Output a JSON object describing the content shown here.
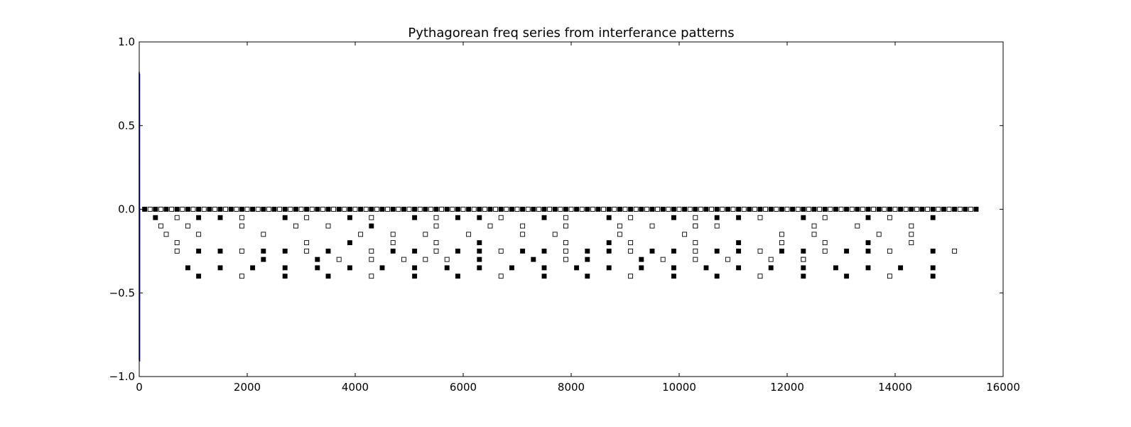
{
  "chart_data": {
    "type": "scatter",
    "title": "Pythagorean freq series from interferance patterns",
    "xlabel": "",
    "ylabel": "",
    "xlim": [
      0,
      16000
    ],
    "ylim": [
      -1.0,
      1.0
    ],
    "x_ticks": [
      0,
      2000,
      4000,
      6000,
      8000,
      10000,
      12000,
      14000,
      16000
    ],
    "x_tick_labels": [
      "0",
      "2000",
      "4000",
      "6000",
      "8000",
      "10000",
      "12000",
      "14000",
      "16000"
    ],
    "y_ticks": [
      -1.0,
      -0.5,
      0.0,
      0.5,
      1.0
    ],
    "y_tick_labels": [
      "−1.0",
      "−0.5",
      "0.0",
      "0.5",
      "1.0"
    ],
    "grid": false,
    "legend": "none",
    "colors": {
      "line": "#00008b",
      "filled_marker": "#000000",
      "open_marker_fill": "#ffffff",
      "axes": "#000000"
    },
    "line_series": {
      "x": [
        0,
        1,
        2,
        3,
        4,
        5,
        6,
        7,
        8
      ],
      "y": [
        0.82,
        -0.9,
        0.81,
        -0.91,
        0.8,
        -0.9,
        0.81,
        -0.91,
        0.0
      ]
    },
    "zero_row": {
      "x_start": 100,
      "x_end": 15500,
      "step": 100,
      "y": 0.0
    },
    "series": [
      {
        "marker": "filled-square",
        "x": [
          300,
          1100,
          1500,
          2700,
          3900,
          5100,
          5900,
          6300,
          7500,
          8700,
          9900,
          10700,
          11100,
          12300,
          13500,
          14700,
          4300,
          10300,
          3900,
          6300,
          8700,
          11100,
          13500,
          1100,
          1500,
          2300,
          2700,
          3500,
          4700,
          5100,
          5900,
          6300,
          7100,
          7500,
          8300,
          8700,
          9500,
          9900,
          10700,
          11100,
          11900,
          12300,
          13100,
          13500,
          14700,
          2300,
          3300,
          6300,
          7300,
          8300,
          9300,
          12300,
          900,
          1500,
          2100,
          2700,
          3300,
          3900,
          4500,
          5100,
          5700,
          6300,
          6900,
          7500,
          8100,
          8700,
          9300,
          9900,
          10500,
          11100,
          11700,
          12300,
          12900,
          13500,
          14100,
          14700,
          1100,
          2700,
          3500,
          5100,
          5900,
          7500,
          8300,
          9900,
          10700,
          12300,
          13100,
          14700
        ],
        "y": [
          -0.05,
          -0.05,
          -0.05,
          -0.05,
          -0.05,
          -0.05,
          -0.05,
          -0.05,
          -0.05,
          -0.05,
          -0.05,
          -0.05,
          -0.05,
          -0.05,
          -0.05,
          -0.05,
          -0.1,
          -0.1,
          -0.2,
          -0.2,
          -0.2,
          -0.2,
          -0.2,
          -0.25,
          -0.25,
          -0.25,
          -0.25,
          -0.25,
          -0.25,
          -0.25,
          -0.25,
          -0.25,
          -0.25,
          -0.25,
          -0.25,
          -0.25,
          -0.25,
          -0.25,
          -0.25,
          -0.25,
          -0.25,
          -0.25,
          -0.25,
          -0.25,
          -0.25,
          -0.3,
          -0.3,
          -0.3,
          -0.3,
          -0.3,
          -0.3,
          -0.3,
          -0.35,
          -0.35,
          -0.35,
          -0.35,
          -0.35,
          -0.35,
          -0.35,
          -0.35,
          -0.35,
          -0.35,
          -0.35,
          -0.35,
          -0.35,
          -0.35,
          -0.35,
          -0.35,
          -0.35,
          -0.35,
          -0.35,
          -0.35,
          -0.35,
          -0.35,
          -0.35,
          -0.35,
          -0.4,
          -0.4,
          -0.4,
          -0.4,
          -0.4,
          -0.4,
          -0.4,
          -0.4,
          -0.4,
          -0.4,
          -0.4,
          -0.4
        ]
      },
      {
        "marker": "open-square",
        "x": [
          700,
          1900,
          3100,
          4300,
          5500,
          6700,
          7900,
          9100,
          10300,
          11500,
          12700,
          13900,
          400,
          900,
          1900,
          2900,
          3500,
          5500,
          6500,
          7100,
          7900,
          8900,
          9500,
          10300,
          10700,
          12500,
          13300,
          14300,
          500,
          1100,
          2300,
          4100,
          4700,
          5300,
          6100,
          7100,
          7700,
          8900,
          10100,
          11900,
          12500,
          13700,
          14300,
          700,
          3100,
          4700,
          5500,
          7900,
          9100,
          10300,
          11900,
          12700,
          14300,
          700,
          1900,
          3100,
          4300,
          5500,
          6700,
          7900,
          9100,
          10300,
          11500,
          12700,
          13900,
          15100,
          3700,
          4300,
          4900,
          5300,
          5700,
          7900,
          9700,
          10300,
          10900,
          11700,
          12300,
          1900,
          4300,
          6700,
          9100,
          11500,
          13900
        ],
        "y": [
          -0.05,
          -0.05,
          -0.05,
          -0.05,
          -0.05,
          -0.05,
          -0.05,
          -0.05,
          -0.05,
          -0.05,
          -0.05,
          -0.05,
          -0.1,
          -0.1,
          -0.1,
          -0.1,
          -0.1,
          -0.1,
          -0.1,
          -0.1,
          -0.1,
          -0.1,
          -0.1,
          -0.1,
          -0.1,
          -0.1,
          -0.1,
          -0.1,
          -0.15,
          -0.15,
          -0.15,
          -0.15,
          -0.15,
          -0.15,
          -0.15,
          -0.15,
          -0.15,
          -0.15,
          -0.15,
          -0.15,
          -0.15,
          -0.15,
          -0.15,
          -0.2,
          -0.2,
          -0.2,
          -0.2,
          -0.2,
          -0.2,
          -0.2,
          -0.2,
          -0.2,
          -0.2,
          -0.25,
          -0.25,
          -0.25,
          -0.25,
          -0.25,
          -0.25,
          -0.25,
          -0.25,
          -0.25,
          -0.25,
          -0.25,
          -0.25,
          -0.25,
          -0.3,
          -0.3,
          -0.3,
          -0.3,
          -0.3,
          -0.3,
          -0.3,
          -0.3,
          -0.3,
          -0.3,
          -0.3,
          -0.4,
          -0.4,
          -0.4,
          -0.4,
          -0.4,
          -0.4
        ]
      }
    ]
  }
}
